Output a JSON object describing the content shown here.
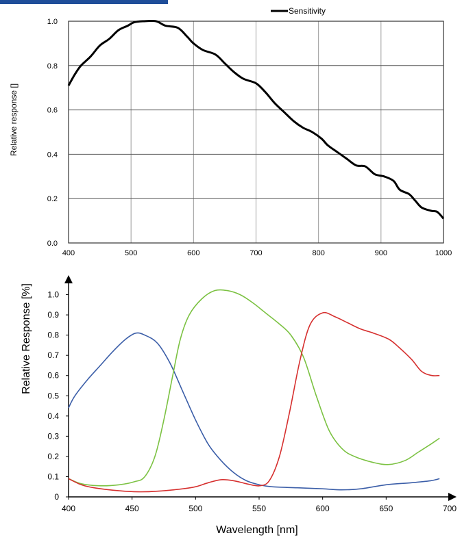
{
  "colors": {
    "header_bar": "#1f4e99",
    "grid": "#9a9a9a",
    "sensitivity": "#000000",
    "blue": "#3b5ea8",
    "green": "#7cc243",
    "red": "#d6302f"
  },
  "chart_data": [
    {
      "type": "line",
      "legend": {
        "placement": "top-center"
      },
      "xlabel": "",
      "ylabel": "Relative response []",
      "xlim": [
        400,
        1000
      ],
      "ylim": [
        0.0,
        1.0
      ],
      "grid": true,
      "x_ticks": [
        "400",
        "500",
        "600",
        "700",
        "800",
        "900",
        "1000"
      ],
      "y_ticks": [
        "0.0",
        "0.2",
        "0.4",
        "0.6",
        "0.8",
        "1.0"
      ],
      "series": [
        {
          "name": "Sensitivity",
          "color": "#000000",
          "points": [
            [
              400,
              0.71
            ],
            [
              410,
              0.76
            ],
            [
              420,
              0.8
            ],
            [
              435,
              0.84
            ],
            [
              450,
              0.89
            ],
            [
              465,
              0.92
            ],
            [
              480,
              0.96
            ],
            [
              495,
              0.98
            ],
            [
              505,
              0.995
            ],
            [
              520,
              1.0
            ],
            [
              540,
              1.0
            ],
            [
              555,
              0.98
            ],
            [
              575,
              0.97
            ],
            [
              590,
              0.93
            ],
            [
              600,
              0.9
            ],
            [
              615,
              0.87
            ],
            [
              635,
              0.85
            ],
            [
              650,
              0.81
            ],
            [
              665,
              0.77
            ],
            [
              680,
              0.74
            ],
            [
              700,
              0.72
            ],
            [
              715,
              0.68
            ],
            [
              730,
              0.63
            ],
            [
              745,
              0.59
            ],
            [
              760,
              0.55
            ],
            [
              775,
              0.52
            ],
            [
              790,
              0.5
            ],
            [
              805,
              0.47
            ],
            [
              815,
              0.44
            ],
            [
              830,
              0.41
            ],
            [
              845,
              0.38
            ],
            [
              860,
              0.35
            ],
            [
              875,
              0.345
            ],
            [
              890,
              0.31
            ],
            [
              905,
              0.3
            ],
            [
              920,
              0.28
            ],
            [
              930,
              0.24
            ],
            [
              945,
              0.22
            ],
            [
              955,
              0.19
            ],
            [
              965,
              0.16
            ],
            [
              980,
              0.145
            ],
            [
              990,
              0.14
            ],
            [
              1000,
              0.11
            ]
          ]
        }
      ]
    },
    {
      "type": "line",
      "xlabel": "Wavelength [nm]",
      "ylabel": "Relative Response [%]",
      "xlim": [
        400,
        700
      ],
      "ylim": [
        0.0,
        1.1
      ],
      "grid": false,
      "x_ticks": [
        "400",
        "450",
        "500",
        "550",
        "600",
        "650",
        "700"
      ],
      "y_ticks": [
        "0",
        "0.1",
        "0.2",
        "0.3",
        "0.4",
        "0.5",
        "0.6",
        "0.7",
        "0.8",
        "0.9",
        "1.0"
      ],
      "series": [
        {
          "color": "#3b5ea8",
          "points": [
            [
              400,
              0.44
            ],
            [
              405,
              0.5
            ],
            [
              415,
              0.58
            ],
            [
              425,
              0.65
            ],
            [
              435,
              0.72
            ],
            [
              445,
              0.78
            ],
            [
              453,
              0.81
            ],
            [
              460,
              0.8
            ],
            [
              470,
              0.76
            ],
            [
              480,
              0.66
            ],
            [
              490,
              0.52
            ],
            [
              500,
              0.38
            ],
            [
              510,
              0.26
            ],
            [
              520,
              0.18
            ],
            [
              530,
              0.12
            ],
            [
              540,
              0.08
            ],
            [
              550,
              0.06
            ],
            [
              560,
              0.05
            ],
            [
              580,
              0.045
            ],
            [
              600,
              0.04
            ],
            [
              615,
              0.035
            ],
            [
              630,
              0.04
            ],
            [
              650,
              0.06
            ],
            [
              670,
              0.07
            ],
            [
              685,
              0.08
            ],
            [
              692,
              0.09
            ]
          ]
        },
        {
          "color": "#7cc243",
          "points": [
            [
              400,
              0.09
            ],
            [
              410,
              0.065
            ],
            [
              425,
              0.055
            ],
            [
              440,
              0.06
            ],
            [
              452,
              0.075
            ],
            [
              460,
              0.1
            ],
            [
              468,
              0.2
            ],
            [
              475,
              0.38
            ],
            [
              482,
              0.6
            ],
            [
              488,
              0.78
            ],
            [
              495,
              0.9
            ],
            [
              505,
              0.98
            ],
            [
              515,
              1.02
            ],
            [
              525,
              1.02
            ],
            [
              535,
              1.0
            ],
            [
              545,
              0.96
            ],
            [
              555,
              0.91
            ],
            [
              565,
              0.86
            ],
            [
              575,
              0.8
            ],
            [
              585,
              0.69
            ],
            [
              595,
              0.5
            ],
            [
              605,
              0.33
            ],
            [
              615,
              0.24
            ],
            [
              625,
              0.2
            ],
            [
              640,
              0.17
            ],
            [
              652,
              0.16
            ],
            [
              665,
              0.18
            ],
            [
              675,
              0.22
            ],
            [
              685,
              0.26
            ],
            [
              692,
              0.29
            ]
          ]
        },
        {
          "color": "#d6302f",
          "points": [
            [
              400,
              0.09
            ],
            [
              410,
              0.06
            ],
            [
              420,
              0.045
            ],
            [
              440,
              0.03
            ],
            [
              455,
              0.025
            ],
            [
              470,
              0.028
            ],
            [
              490,
              0.04
            ],
            [
              500,
              0.05
            ],
            [
              510,
              0.07
            ],
            [
              520,
              0.085
            ],
            [
              530,
              0.08
            ],
            [
              540,
              0.065
            ],
            [
              550,
              0.055
            ],
            [
              558,
              0.08
            ],
            [
              566,
              0.2
            ],
            [
              574,
              0.42
            ],
            [
              582,
              0.67
            ],
            [
              590,
              0.85
            ],
            [
              600,
              0.91
            ],
            [
              610,
              0.89
            ],
            [
              620,
              0.86
            ],
            [
              630,
              0.83
            ],
            [
              640,
              0.81
            ],
            [
              652,
              0.78
            ],
            [
              660,
              0.74
            ],
            [
              670,
              0.68
            ],
            [
              678,
              0.62
            ],
            [
              686,
              0.6
            ],
            [
              692,
              0.6
            ]
          ]
        }
      ]
    }
  ]
}
